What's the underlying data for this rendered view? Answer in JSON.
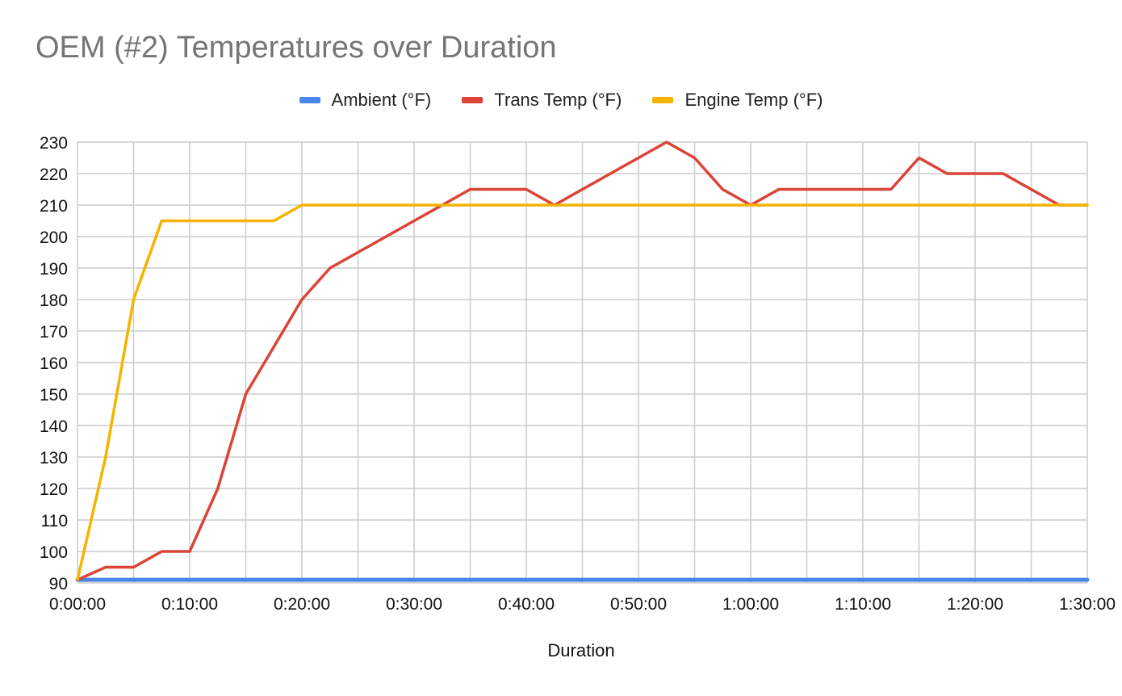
{
  "chart_data": {
    "type": "line",
    "title": "OEM (#2) Temperatures over Duration",
    "xlabel": "Duration",
    "ylabel": "",
    "x_unit": "minutes",
    "xlim": [
      0,
      90
    ],
    "ylim": [
      90,
      230
    ],
    "x_tick_values": [
      0,
      10,
      20,
      30,
      40,
      50,
      60,
      70,
      80,
      90
    ],
    "x_tick_labels": [
      "0:00:00",
      "0:10:00",
      "0:20:00",
      "0:30:00",
      "0:40:00",
      "0:50:00",
      "1:00:00",
      "1:10:00",
      "1:20:00",
      "1:30:00"
    ],
    "y_ticks": [
      90,
      100,
      110,
      120,
      130,
      140,
      150,
      160,
      170,
      180,
      190,
      200,
      210,
      220,
      230
    ],
    "grid": true,
    "legend_position": "top",
    "series": [
      {
        "name": "Ambient (°F)",
        "color": "#4a86e8",
        "x": [
          0,
          90
        ],
        "values": [
          91,
          91
        ]
      },
      {
        "name": "Trans Temp (°F)",
        "color": "#db4437",
        "x": [
          0,
          2.5,
          5,
          7.5,
          10,
          12.5,
          15,
          17.5,
          20,
          22.5,
          25,
          27.5,
          30,
          32.5,
          35,
          37.5,
          40,
          42.5,
          45,
          47.5,
          50,
          52.5,
          55,
          57.5,
          60,
          62.5,
          65,
          67.5,
          70,
          72.5,
          75,
          77.5,
          80,
          82.5,
          85,
          87.5,
          90
        ],
        "values": [
          91,
          95,
          95,
          100,
          100,
          120,
          150,
          165,
          180,
          190,
          195,
          200,
          205,
          210,
          215,
          215,
          215,
          210,
          215,
          220,
          225,
          230,
          225,
          215,
          210,
          215,
          215,
          215,
          215,
          215,
          225,
          220,
          220,
          220,
          215,
          210,
          210
        ]
      },
      {
        "name": "Engine Temp (°F)",
        "color": "#f4b400",
        "x": [
          0,
          2.5,
          5,
          7.5,
          10,
          12.5,
          15,
          17.5,
          20,
          22.5,
          25,
          30,
          40,
          50,
          60,
          70,
          80,
          90
        ],
        "values": [
          91,
          130,
          180,
          205,
          205,
          205,
          205,
          205,
          210,
          210,
          210,
          210,
          210,
          210,
          210,
          210,
          210,
          210
        ]
      }
    ]
  }
}
